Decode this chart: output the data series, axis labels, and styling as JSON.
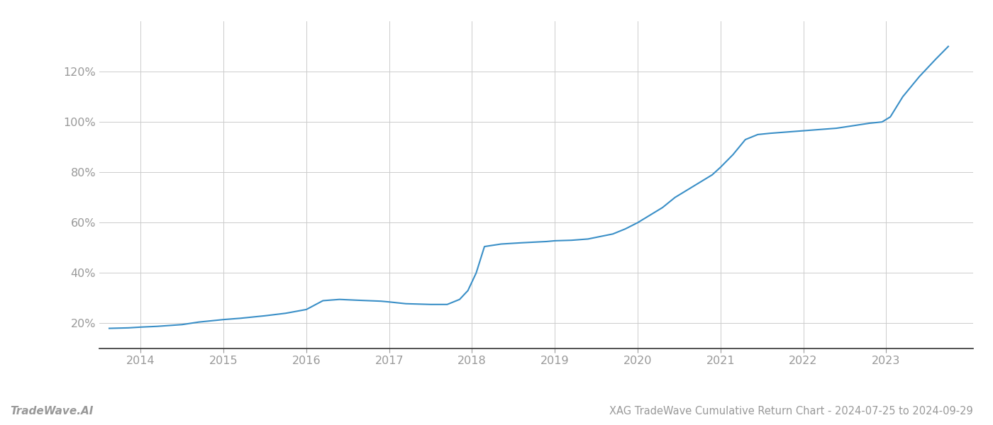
{
  "title": "XAG TradeWave Cumulative Return Chart - 2024-07-25 to 2024-09-29",
  "watermark": "TradeWave.AI",
  "line_color": "#3a8fc7",
  "background_color": "#ffffff",
  "grid_color": "#cccccc",
  "x_years": [
    2014,
    2015,
    2016,
    2017,
    2018,
    2019,
    2020,
    2021,
    2022,
    2023
  ],
  "data_points": [
    {
      "year": 2013.62,
      "value": 18.0
    },
    {
      "year": 2013.85,
      "value": 18.2
    },
    {
      "year": 2014.0,
      "value": 18.5
    },
    {
      "year": 2014.2,
      "value": 18.8
    },
    {
      "year": 2014.5,
      "value": 19.5
    },
    {
      "year": 2014.7,
      "value": 20.5
    },
    {
      "year": 2015.0,
      "value": 21.5
    },
    {
      "year": 2015.2,
      "value": 22.0
    },
    {
      "year": 2015.5,
      "value": 23.0
    },
    {
      "year": 2015.75,
      "value": 24.0
    },
    {
      "year": 2016.0,
      "value": 25.5
    },
    {
      "year": 2016.2,
      "value": 29.0
    },
    {
      "year": 2016.4,
      "value": 29.5
    },
    {
      "year": 2016.6,
      "value": 29.2
    },
    {
      "year": 2016.9,
      "value": 28.8
    },
    {
      "year": 2017.0,
      "value": 28.5
    },
    {
      "year": 2017.2,
      "value": 27.8
    },
    {
      "year": 2017.5,
      "value": 27.5
    },
    {
      "year": 2017.7,
      "value": 27.5
    },
    {
      "year": 2017.85,
      "value": 29.5
    },
    {
      "year": 2017.95,
      "value": 33.0
    },
    {
      "year": 2018.05,
      "value": 40.0
    },
    {
      "year": 2018.15,
      "value": 50.5
    },
    {
      "year": 2018.35,
      "value": 51.5
    },
    {
      "year": 2018.6,
      "value": 52.0
    },
    {
      "year": 2018.9,
      "value": 52.5
    },
    {
      "year": 2019.0,
      "value": 52.8
    },
    {
      "year": 2019.2,
      "value": 53.0
    },
    {
      "year": 2019.4,
      "value": 53.5
    },
    {
      "year": 2019.55,
      "value": 54.5
    },
    {
      "year": 2019.7,
      "value": 55.5
    },
    {
      "year": 2019.85,
      "value": 57.5
    },
    {
      "year": 2020.0,
      "value": 60.0
    },
    {
      "year": 2020.15,
      "value": 63.0
    },
    {
      "year": 2020.3,
      "value": 66.0
    },
    {
      "year": 2020.45,
      "value": 70.0
    },
    {
      "year": 2020.6,
      "value": 73.0
    },
    {
      "year": 2020.75,
      "value": 76.0
    },
    {
      "year": 2020.9,
      "value": 79.0
    },
    {
      "year": 2021.0,
      "value": 82.0
    },
    {
      "year": 2021.15,
      "value": 87.0
    },
    {
      "year": 2021.3,
      "value": 93.0
    },
    {
      "year": 2021.45,
      "value": 95.0
    },
    {
      "year": 2021.6,
      "value": 95.5
    },
    {
      "year": 2021.8,
      "value": 96.0
    },
    {
      "year": 2022.0,
      "value": 96.5
    },
    {
      "year": 2022.2,
      "value": 97.0
    },
    {
      "year": 2022.4,
      "value": 97.5
    },
    {
      "year": 2022.6,
      "value": 98.5
    },
    {
      "year": 2022.8,
      "value": 99.5
    },
    {
      "year": 2022.95,
      "value": 100.0
    },
    {
      "year": 2023.05,
      "value": 102.0
    },
    {
      "year": 2023.2,
      "value": 110.0
    },
    {
      "year": 2023.4,
      "value": 118.0
    },
    {
      "year": 2023.6,
      "value": 125.0
    },
    {
      "year": 2023.75,
      "value": 130.0
    }
  ],
  "xlim": [
    2013.5,
    2024.05
  ],
  "ylim": [
    10,
    140
  ],
  "yticks": [
    20,
    40,
    60,
    80,
    100,
    120
  ],
  "line_width": 1.5,
  "title_fontsize": 10.5,
  "tick_fontsize": 11.5,
  "watermark_fontsize": 11,
  "axis_label_color": "#999999",
  "spine_color": "#333333",
  "title_color": "#999999"
}
